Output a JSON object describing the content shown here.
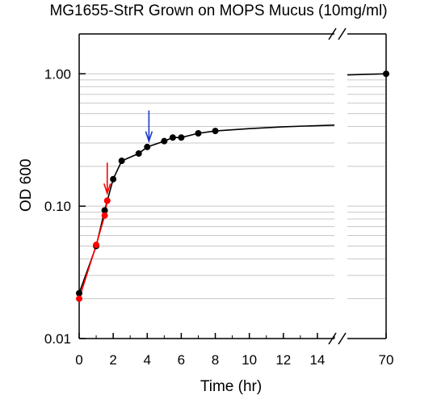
{
  "chart_data": {
    "type": "line",
    "title": "MG1655-StrR Grown on MOPS Mucus (10mg/ml)",
    "xlabel": "Time (hr)",
    "ylabel": "OD 600",
    "yscale": "log",
    "ylim": [
      0.01,
      2.0
    ],
    "xlim_main": [
      0,
      15
    ],
    "xlim_break": [
      69,
      71
    ],
    "x_ticks": [
      "0",
      "2",
      "4",
      "6",
      "8",
      "10",
      "12",
      "14",
      "70"
    ],
    "x_tick_values": [
      0,
      2,
      4,
      6,
      8,
      10,
      12,
      14,
      70
    ],
    "y_ticks": [
      "0.01",
      "0.10",
      "1.00"
    ],
    "y_tick_values": [
      0.01,
      0.1,
      1.0
    ],
    "grid": "horizontal minor log gridlines",
    "axis_break": "between 15 and 70 hr",
    "series": [
      {
        "color": "#000000",
        "x": [
          0,
          1,
          1.5,
          2,
          2.5,
          3.5,
          4,
          5,
          5.5,
          6,
          7,
          8,
          70
        ],
        "y": [
          0.022,
          0.05,
          0.093,
          0.16,
          0.22,
          0.25,
          0.28,
          0.31,
          0.33,
          0.33,
          0.355,
          0.37,
          1.0
        ]
      },
      {
        "color": "#ff0000",
        "x": [
          0,
          1,
          1.5,
          1.65
        ],
        "y": [
          0.02,
          0.051,
          0.085,
          0.11
        ]
      }
    ],
    "fit_curve": {
      "color": "#000000",
      "x": [
        8,
        10,
        12,
        15
      ],
      "y": [
        0.37,
        0.385,
        0.398,
        0.41
      ]
    },
    "annotations": [
      {
        "type": "arrow",
        "color": "#ff0000",
        "x": 1.65,
        "y_tip": 0.115
      },
      {
        "type": "arrow",
        "color": "#1a3cc8",
        "x": 4.1,
        "y_tip": 0.285
      }
    ]
  }
}
